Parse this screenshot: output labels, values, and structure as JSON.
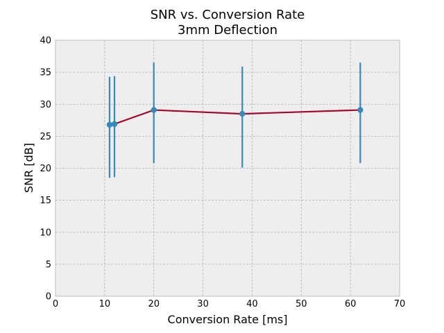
{
  "chart_data": {
    "type": "line",
    "title": "SNR vs. Conversion Rate",
    "subtitle": "3mm Deflection",
    "xlabel": "Conversion Rate [ms]",
    "ylabel": "SNR [dB]",
    "xlim": [
      0,
      70
    ],
    "ylim": [
      0,
      40
    ],
    "x_ticks": [
      0,
      10,
      20,
      30,
      40,
      50,
      60,
      70
    ],
    "y_ticks": [
      0,
      5,
      10,
      15,
      20,
      25,
      30,
      35,
      40
    ],
    "grid": true,
    "series": [
      {
        "x": [
          11,
          12,
          20,
          38,
          62
        ],
        "y": [
          26.8,
          26.9,
          29.1,
          28.5,
          29.1
        ],
        "err_low": [
          18.5,
          18.6,
          20.8,
          20.1,
          20.8
        ],
        "err_high": [
          34.3,
          34.4,
          36.5,
          35.9,
          36.5
        ],
        "line_color": "#A60628",
        "marker_color": "#348ABD"
      }
    ],
    "colors": {
      "plot_background": "#EEEEEE",
      "grid": "#B2B2B2",
      "axes_edge": "#BCBCBC"
    }
  }
}
